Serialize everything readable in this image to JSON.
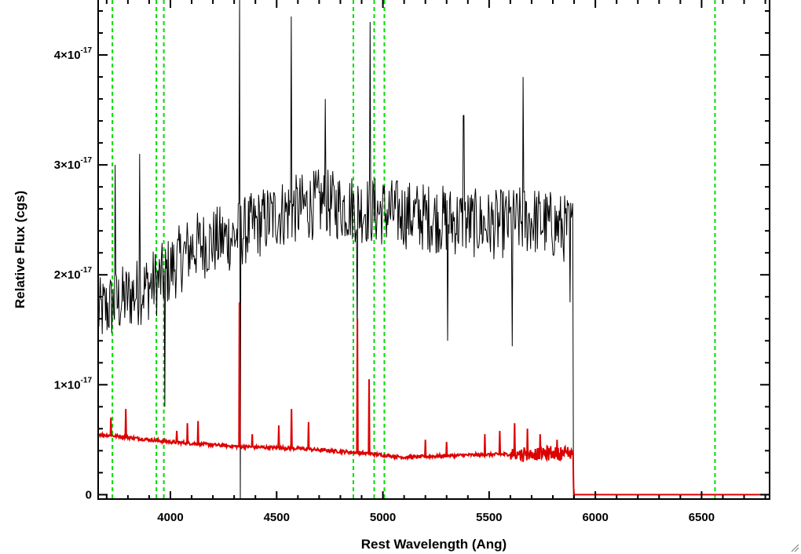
{
  "chart_data": {
    "type": "line",
    "title": "",
    "xlabel": "Rest Wavelength (Ang)",
    "ylabel": "Relative Flux (cgs)",
    "xlim": [
      3660,
      6820
    ],
    "ylim": [
      -4e-19,
      4.5e-17
    ],
    "grid": false,
    "x_ticks": [
      4000,
      4500,
      5000,
      5500,
      6000,
      6500
    ],
    "x_tick_labels": [
      "4000",
      "4500",
      "5000",
      "5500",
      "6000",
      "6500"
    ],
    "y_ticks": [
      0,
      1e-17,
      2e-17,
      3e-17,
      4e-17
    ],
    "y_tick_labels": [
      {
        "mantissa": "0",
        "exponent": ""
      },
      {
        "mantissa": "1×10",
        "exponent": "-17"
      },
      {
        "mantissa": "2×10",
        "exponent": "-17"
      },
      {
        "mantissa": "3×10",
        "exponent": "-17"
      },
      {
        "mantissa": "4×10",
        "exponent": "-17"
      }
    ],
    "vlines": {
      "color": "#00dd00",
      "style": "dashed",
      "x": [
        3727,
        3934,
        3969,
        4861,
        4959,
        5007,
        6563
      ]
    },
    "series": [
      {
        "color": "#000000",
        "style": "noisy-spectrum",
        "x_range": [
          3660,
          5895
        ],
        "continuum": [
          [
            3660,
            1.65e-17
          ],
          [
            3800,
            1.8e-17
          ],
          [
            3950,
            1.95e-17
          ],
          [
            4100,
            2.25e-17
          ],
          [
            4300,
            2.35e-17
          ],
          [
            4500,
            2.55e-17
          ],
          [
            4700,
            2.65e-17
          ],
          [
            4900,
            2.6e-17
          ],
          [
            5100,
            2.55e-17
          ],
          [
            5300,
            2.5e-17
          ],
          [
            5500,
            2.45e-17
          ],
          [
            5700,
            2.5e-17
          ],
          [
            5895,
            2.4e-17
          ]
        ],
        "noise_amplitude": 3.2e-18,
        "features": [
          [
            3740,
            3e-17
          ],
          [
            3855,
            3.1e-17
          ],
          [
            3975,
            8e-18
          ],
          [
            4325,
            4.5e-17
          ],
          [
            4328,
            -5e-19
          ],
          [
            4570,
            4.35e-17
          ],
          [
            4730,
            3.6e-17
          ],
          [
            4880,
            1.4e-17
          ],
          [
            4940,
            4.3e-17
          ],
          [
            5305,
            1.4e-17
          ],
          [
            5380,
            3.45e-17
          ],
          [
            5610,
            1.35e-17
          ],
          [
            5660,
            3.8e-17
          ],
          [
            5880,
            1.75e-17
          ]
        ],
        "end_drop_x": 5897
      },
      {
        "color": "#dd0000",
        "style": "model-spectrum",
        "x_range": [
          3660,
          6820
        ],
        "continuum": [
          [
            3660,
            5.5e-18
          ],
          [
            4000,
            4.8e-18
          ],
          [
            4300,
            4.4e-18
          ],
          [
            4600,
            4.2e-18
          ],
          [
            4900,
            3.8e-18
          ],
          [
            5100,
            3.4e-18
          ],
          [
            5400,
            3.6e-18
          ],
          [
            5895,
            3.8e-18
          ],
          [
            5898,
            0.0
          ],
          [
            6820,
            0.0
          ]
        ],
        "emission_lines": [
          [
            3720,
            7e-18
          ],
          [
            3790,
            7.8e-18
          ],
          [
            4030,
            5.8e-18
          ],
          [
            4080,
            6.5e-18
          ],
          [
            4130,
            6.7e-18
          ],
          [
            4325,
            1.75e-17
          ],
          [
            4385,
            5.5e-18
          ],
          [
            4510,
            6.3e-18
          ],
          [
            4570,
            7.8e-18
          ],
          [
            4650,
            6.6e-18
          ],
          [
            4880,
            1.6e-17
          ],
          [
            4935,
            1.05e-17
          ],
          [
            5200,
            5e-18
          ],
          [
            5300,
            4.8e-18
          ],
          [
            5480,
            5.5e-18
          ],
          [
            5550,
            5.8e-18
          ],
          [
            5620,
            6.5e-18
          ],
          [
            5680,
            6e-18
          ],
          [
            5740,
            5.5e-18
          ],
          [
            5820,
            5e-18
          ]
        ]
      }
    ]
  }
}
